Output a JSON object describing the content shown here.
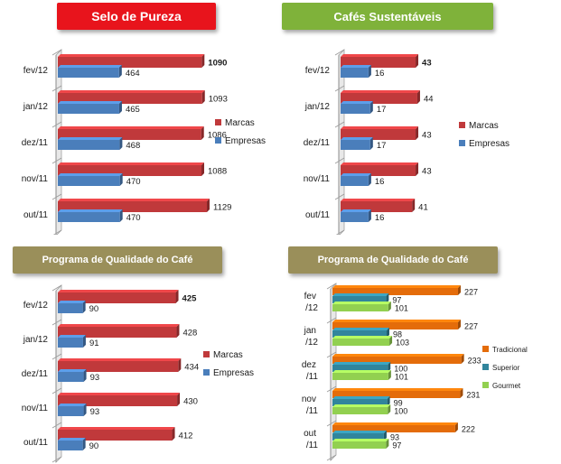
{
  "panels": [
    {
      "title": "Selo de Pureza",
      "banner_color": "#e8141c",
      "chart_data": {
        "type": "bar",
        "orientation": "horizontal",
        "categories": [
          "fev/12",
          "jan/12",
          "dez/11",
          "nov/11",
          "out/11"
        ],
        "series": [
          {
            "name": "Marcas",
            "color": "#c0393b",
            "values": [
              1090,
              1093,
              1086,
              1088,
              1129
            ]
          },
          {
            "name": "Empresas",
            "color": "#4a7ebb",
            "values": [
              464,
              465,
              468,
              470,
              470
            ]
          }
        ],
        "legend": "right",
        "grid": false
      }
    },
    {
      "title": "Cafés Sustentáveis",
      "banner_color": "#7fb23a",
      "chart_data": {
        "type": "bar",
        "orientation": "horizontal",
        "categories": [
          "fev/12",
          "jan/12",
          "dez/11",
          "nov/11",
          "out/11"
        ],
        "series": [
          {
            "name": "Marcas",
            "color": "#c0393b",
            "values": [
              43,
              44,
              43,
              43,
              41
            ]
          },
          {
            "name": "Empresas",
            "color": "#4a7ebb",
            "values": [
              16,
              17,
              17,
              16,
              16
            ]
          }
        ],
        "legend": "right",
        "grid": false
      }
    },
    {
      "title": "Programa de Qualidade do Café",
      "banner_color": "#9a8f5a",
      "chart_data": {
        "type": "bar",
        "orientation": "horizontal",
        "categories": [
          "fev/12",
          "jan/12",
          "dez/11",
          "nov/11",
          "out/11"
        ],
        "series": [
          {
            "name": "Marcas",
            "color": "#c0393b",
            "values": [
              425,
              428,
              434,
              430,
              412
            ]
          },
          {
            "name": "Empresas",
            "color": "#4a7ebb",
            "values": [
              90,
              91,
              93,
              93,
              90
            ]
          }
        ],
        "legend": "right",
        "grid": false
      }
    },
    {
      "title": "Programa de Qualidade do Café",
      "banner_color": "#9a8f5a",
      "chart_data": {
        "type": "bar",
        "orientation": "horizontal",
        "categories": [
          [
            "fev",
            "/12"
          ],
          [
            "jan",
            "/12"
          ],
          [
            "dez",
            "/11"
          ],
          [
            "nov",
            "/11"
          ],
          [
            "out",
            "/11"
          ]
        ],
        "series": [
          {
            "name": "Tradicional",
            "color": "#e46c0a",
            "values": [
              227,
              227,
              233,
              231,
              222
            ]
          },
          {
            "name": "Superior",
            "color": "#31859c",
            "values": [
              97,
              98,
              100,
              99,
              93
            ]
          },
          {
            "name": "Gourmet",
            "color": "#92d050",
            "values": [
              101,
              103,
              101,
              100,
              97
            ]
          }
        ],
        "legend": "right",
        "grid": false
      }
    }
  ]
}
